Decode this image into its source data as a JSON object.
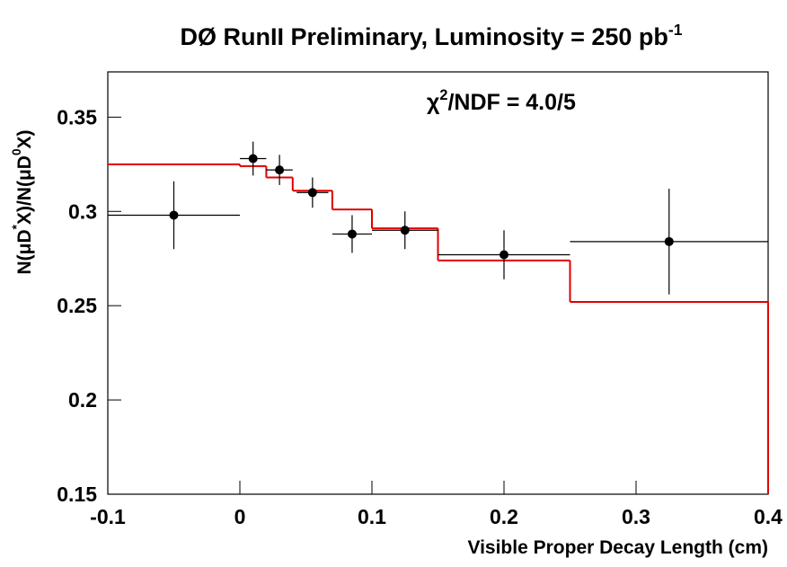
{
  "chart_data": {
    "type": "scatter",
    "title": [
      {
        "text": "DØ  RunII  Preliminary, Luminosity = 250 pb"
      },
      {
        "text": "-1",
        "sup": true
      }
    ],
    "title_color": "#1010e8",
    "annotation": [
      {
        "text": "χ"
      },
      {
        "text": "2",
        "sup": true
      },
      {
        "text": "/NDF = 4.0/5"
      }
    ],
    "annotation_color": "#1010e8",
    "xlabel": [
      {
        "text": "Visible Proper Decay Length (cm)"
      }
    ],
    "ylabel": [
      {
        "text": "N(μD"
      },
      {
        "text": "*",
        "sup": true
      },
      {
        "text": "X)/N(μD"
      },
      {
        "text": "0",
        "sup": true
      },
      {
        "text": "X)"
      }
    ],
    "xlim": [
      -0.1,
      0.4
    ],
    "ylim": [
      0.15,
      0.374
    ],
    "xticks": [
      -0.1,
      0,
      0.1,
      0.2,
      0.3,
      0.4
    ],
    "yticks": [
      0.15,
      0.2,
      0.25,
      0.3,
      0.35
    ],
    "points": {
      "color": "#000000",
      "x": [
        -0.05,
        0.01,
        0.03,
        0.055,
        0.085,
        0.125,
        0.2,
        0.325
      ],
      "xerr": [
        0.05,
        0.01,
        0.01,
        0.012,
        0.015,
        0.025,
        0.05,
        0.075
      ],
      "values": [
        0.298,
        0.328,
        0.322,
        0.31,
        0.288,
        0.29,
        0.277,
        0.284
      ],
      "yerr": [
        0.018,
        0.009,
        0.008,
        0.008,
        0.01,
        0.01,
        0.013,
        0.028
      ]
    },
    "histogram": {
      "color": "#e00000",
      "bins": [
        -0.1,
        0,
        0.02,
        0.04,
        0.07,
        0.1,
        0.15,
        0.25,
        0.4
      ],
      "values": [
        0.325,
        0.324,
        0.318,
        0.311,
        0.301,
        0.291,
        0.274,
        0.252
      ]
    }
  }
}
